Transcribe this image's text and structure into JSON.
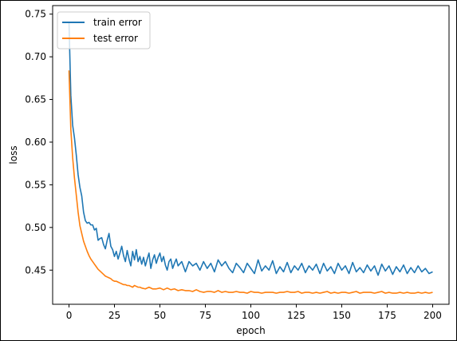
{
  "chart_data": {
    "type": "line",
    "title": "",
    "xlabel": "epoch",
    "ylabel": "loss",
    "xlim": [
      -9,
      209
    ],
    "ylim": [
      0.41,
      0.76
    ],
    "xticks": [
      0,
      25,
      50,
      75,
      100,
      125,
      150,
      175,
      200
    ],
    "yticks": [
      0.45,
      0.5,
      0.55,
      0.6,
      0.65,
      0.7,
      0.75
    ],
    "ytick_labels": [
      "0.45",
      "0.50",
      "0.55",
      "0.60",
      "0.65",
      "0.70",
      "0.75"
    ],
    "grid": false,
    "legend": {
      "placement": "top-left"
    },
    "series": [
      {
        "name": "train error",
        "color": "#1f77b4",
        "x": [
          0,
          1,
          2,
          3,
          4,
          5,
          6,
          7,
          8,
          9,
          10,
          11,
          12,
          13,
          14,
          15,
          16,
          17,
          18,
          19,
          20,
          21,
          22,
          23,
          24,
          25,
          26,
          27,
          28,
          29,
          30,
          31,
          32,
          33,
          34,
          35,
          36,
          37,
          38,
          39,
          40,
          41,
          42,
          43,
          44,
          45,
          46,
          47,
          48,
          49,
          50,
          51,
          52,
          53,
          54,
          55,
          56,
          57,
          58,
          59,
          60,
          62,
          64,
          66,
          68,
          70,
          72,
          74,
          76,
          78,
          80,
          82,
          84,
          86,
          88,
          90,
          92,
          94,
          96,
          98,
          100,
          102,
          104,
          106,
          108,
          110,
          112,
          114,
          116,
          118,
          120,
          122,
          124,
          126,
          128,
          130,
          132,
          134,
          136,
          138,
          140,
          142,
          144,
          146,
          148,
          150,
          152,
          154,
          156,
          158,
          160,
          162,
          164,
          166,
          168,
          170,
          172,
          174,
          176,
          178,
          180,
          182,
          184,
          186,
          188,
          190,
          192,
          194,
          196,
          198,
          200
        ],
        "values": [
          0.74,
          0.655,
          0.62,
          0.605,
          0.585,
          0.562,
          0.547,
          0.537,
          0.518,
          0.508,
          0.505,
          0.506,
          0.503,
          0.503,
          0.497,
          0.499,
          0.485,
          0.487,
          0.488,
          0.48,
          0.475,
          0.485,
          0.493,
          0.478,
          0.474,
          0.466,
          0.472,
          0.463,
          0.47,
          0.478,
          0.467,
          0.46,
          0.473,
          0.463,
          0.455,
          0.472,
          0.462,
          0.474,
          0.46,
          0.466,
          0.457,
          0.465,
          0.455,
          0.463,
          0.47,
          0.452,
          0.462,
          0.468,
          0.458,
          0.465,
          0.47,
          0.46,
          0.466,
          0.456,
          0.45,
          0.46,
          0.463,
          0.452,
          0.458,
          0.463,
          0.455,
          0.46,
          0.448,
          0.46,
          0.455,
          0.458,
          0.45,
          0.46,
          0.452,
          0.458,
          0.448,
          0.462,
          0.455,
          0.46,
          0.452,
          0.447,
          0.458,
          0.453,
          0.447,
          0.458,
          0.452,
          0.446,
          0.462,
          0.449,
          0.455,
          0.45,
          0.461,
          0.446,
          0.454,
          0.448,
          0.459,
          0.447,
          0.455,
          0.45,
          0.458,
          0.447,
          0.455,
          0.45,
          0.457,
          0.446,
          0.458,
          0.449,
          0.454,
          0.446,
          0.458,
          0.45,
          0.455,
          0.446,
          0.459,
          0.448,
          0.453,
          0.447,
          0.456,
          0.449,
          0.455,
          0.444,
          0.457,
          0.449,
          0.455,
          0.445,
          0.454,
          0.448,
          0.456,
          0.446,
          0.453,
          0.447,
          0.455,
          0.448,
          0.452,
          0.446,
          0.448
        ]
      },
      {
        "name": "test error",
        "color": "#ff7f0e",
        "x": [
          0,
          1,
          2,
          3,
          4,
          5,
          6,
          7,
          8,
          9,
          10,
          11,
          12,
          13,
          14,
          15,
          16,
          17,
          18,
          19,
          20,
          21,
          22,
          23,
          24,
          25,
          26,
          27,
          28,
          29,
          30,
          31,
          32,
          33,
          34,
          35,
          36,
          37,
          38,
          39,
          40,
          42,
          44,
          46,
          48,
          50,
          52,
          54,
          56,
          58,
          60,
          62,
          64,
          66,
          68,
          70,
          72,
          74,
          76,
          78,
          80,
          82,
          84,
          86,
          88,
          90,
          92,
          94,
          96,
          98,
          100,
          102,
          104,
          106,
          108,
          110,
          112,
          114,
          116,
          118,
          120,
          122,
          124,
          126,
          128,
          130,
          132,
          134,
          136,
          138,
          140,
          142,
          144,
          146,
          148,
          150,
          152,
          154,
          156,
          158,
          160,
          162,
          164,
          166,
          168,
          170,
          172,
          174,
          176,
          178,
          180,
          182,
          184,
          186,
          188,
          190,
          192,
          194,
          196,
          198,
          200
        ],
        "values": [
          0.684,
          0.615,
          0.582,
          0.558,
          0.538,
          0.518,
          0.502,
          0.493,
          0.484,
          0.478,
          0.472,
          0.467,
          0.463,
          0.46,
          0.457,
          0.454,
          0.451,
          0.449,
          0.447,
          0.445,
          0.443,
          0.442,
          0.441,
          0.44,
          0.438,
          0.437,
          0.437,
          0.436,
          0.435,
          0.434,
          0.433,
          0.433,
          0.432,
          0.432,
          0.431,
          0.43,
          0.432,
          0.431,
          0.43,
          0.43,
          0.429,
          0.428,
          0.43,
          0.428,
          0.428,
          0.429,
          0.427,
          0.429,
          0.427,
          0.428,
          0.426,
          0.427,
          0.426,
          0.426,
          0.425,
          0.427,
          0.425,
          0.424,
          0.425,
          0.425,
          0.424,
          0.426,
          0.424,
          0.425,
          0.424,
          0.424,
          0.425,
          0.424,
          0.424,
          0.423,
          0.425,
          0.424,
          0.424,
          0.423,
          0.424,
          0.424,
          0.424,
          0.423,
          0.424,
          0.424,
          0.425,
          0.424,
          0.424,
          0.425,
          0.423,
          0.424,
          0.424,
          0.423,
          0.424,
          0.423,
          0.424,
          0.425,
          0.423,
          0.424,
          0.423,
          0.424,
          0.424,
          0.423,
          0.424,
          0.425,
          0.423,
          0.424,
          0.424,
          0.424,
          0.423,
          0.424,
          0.425,
          0.423,
          0.424,
          0.423,
          0.423,
          0.424,
          0.423,
          0.424,
          0.423,
          0.423,
          0.424,
          0.423,
          0.424,
          0.423,
          0.424
        ]
      }
    ]
  }
}
